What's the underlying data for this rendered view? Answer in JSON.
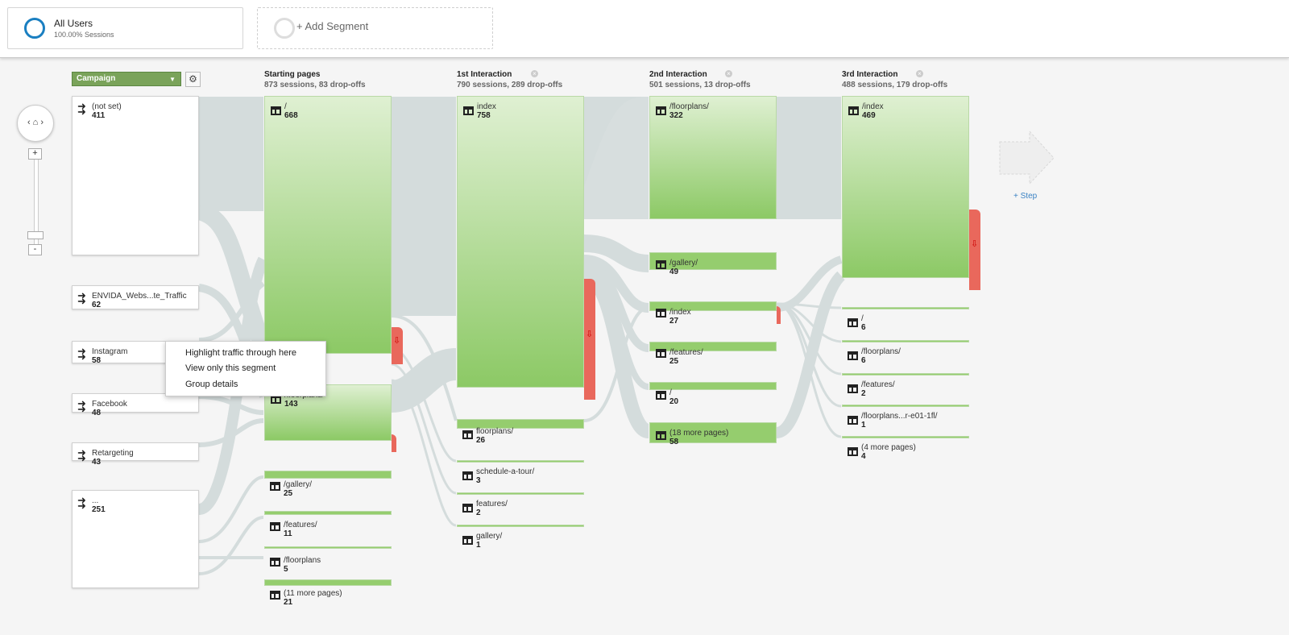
{
  "segments": {
    "all_users": {
      "title": "All Users",
      "subtitle": "100.00% Sessions"
    },
    "add_segment": {
      "label": "+ Add Segment"
    }
  },
  "dimension_selector": {
    "value": "Campaign"
  },
  "columns": [
    {
      "title": "Starting pages",
      "subtitle": "873 sessions, 83 drop-offs"
    },
    {
      "title": "1st Interaction",
      "subtitle": "790 sessions, 289 drop-offs"
    },
    {
      "title": "2nd Interaction",
      "subtitle": "501 sessions, 13 drop-offs"
    },
    {
      "title": "3rd Interaction",
      "subtitle": "488 sessions, 179 drop-offs"
    }
  ],
  "sources": [
    {
      "name": "(not set)",
      "value": "411"
    },
    {
      "name": "ENVIDA_Webs...te_Traffic",
      "value": "62"
    },
    {
      "name": "Instagram",
      "value": "58"
    },
    {
      "name": "Facebook",
      "value": "48"
    },
    {
      "name": "Retargeting",
      "value": "43"
    },
    {
      "name": "...",
      "value": "251"
    }
  ],
  "starting_pages": [
    {
      "name": "/",
      "value": "668"
    },
    {
      "name": "/floorplans/",
      "value": "143"
    },
    {
      "name": "/gallery/",
      "value": "25"
    },
    {
      "name": "/features/",
      "value": "11"
    },
    {
      "name": "/floorplans",
      "value": "5"
    },
    {
      "name": "(11 more pages)",
      "value": "21"
    }
  ],
  "interaction1": [
    {
      "name": "index",
      "value": "758"
    },
    {
      "name": "floorplans/",
      "value": "26"
    },
    {
      "name": "schedule-a-tour/",
      "value": "3"
    },
    {
      "name": "features/",
      "value": "2"
    },
    {
      "name": "gallery/",
      "value": "1"
    }
  ],
  "interaction2": [
    {
      "name": "/floorplans/",
      "value": "322"
    },
    {
      "name": "/gallery/",
      "value": "49"
    },
    {
      "name": "/index",
      "value": "27"
    },
    {
      "name": "/features/",
      "value": "25"
    },
    {
      "name": "/",
      "value": "20"
    },
    {
      "name": "(18 more pages)",
      "value": "58"
    }
  ],
  "interaction3": [
    {
      "name": "/index",
      "value": "469"
    },
    {
      "name": "/",
      "value": "6"
    },
    {
      "name": "/floorplans/",
      "value": "6"
    },
    {
      "name": "/features/",
      "value": "2"
    },
    {
      "name": "/floorplans...r-e01-1fl/",
      "value": "1"
    },
    {
      "name": "(4 more pages)",
      "value": "4"
    }
  ],
  "context_menu": {
    "items": [
      "Highlight traffic through here",
      "View only this segment",
      "Group details"
    ]
  },
  "add_step": {
    "label": "+ Step"
  },
  "colors": {
    "node_green": "#8cc965",
    "dropoff_red": "#e9685c",
    "link_gray": "#d4dcdc",
    "accent_blue": "#1a7fc1"
  }
}
